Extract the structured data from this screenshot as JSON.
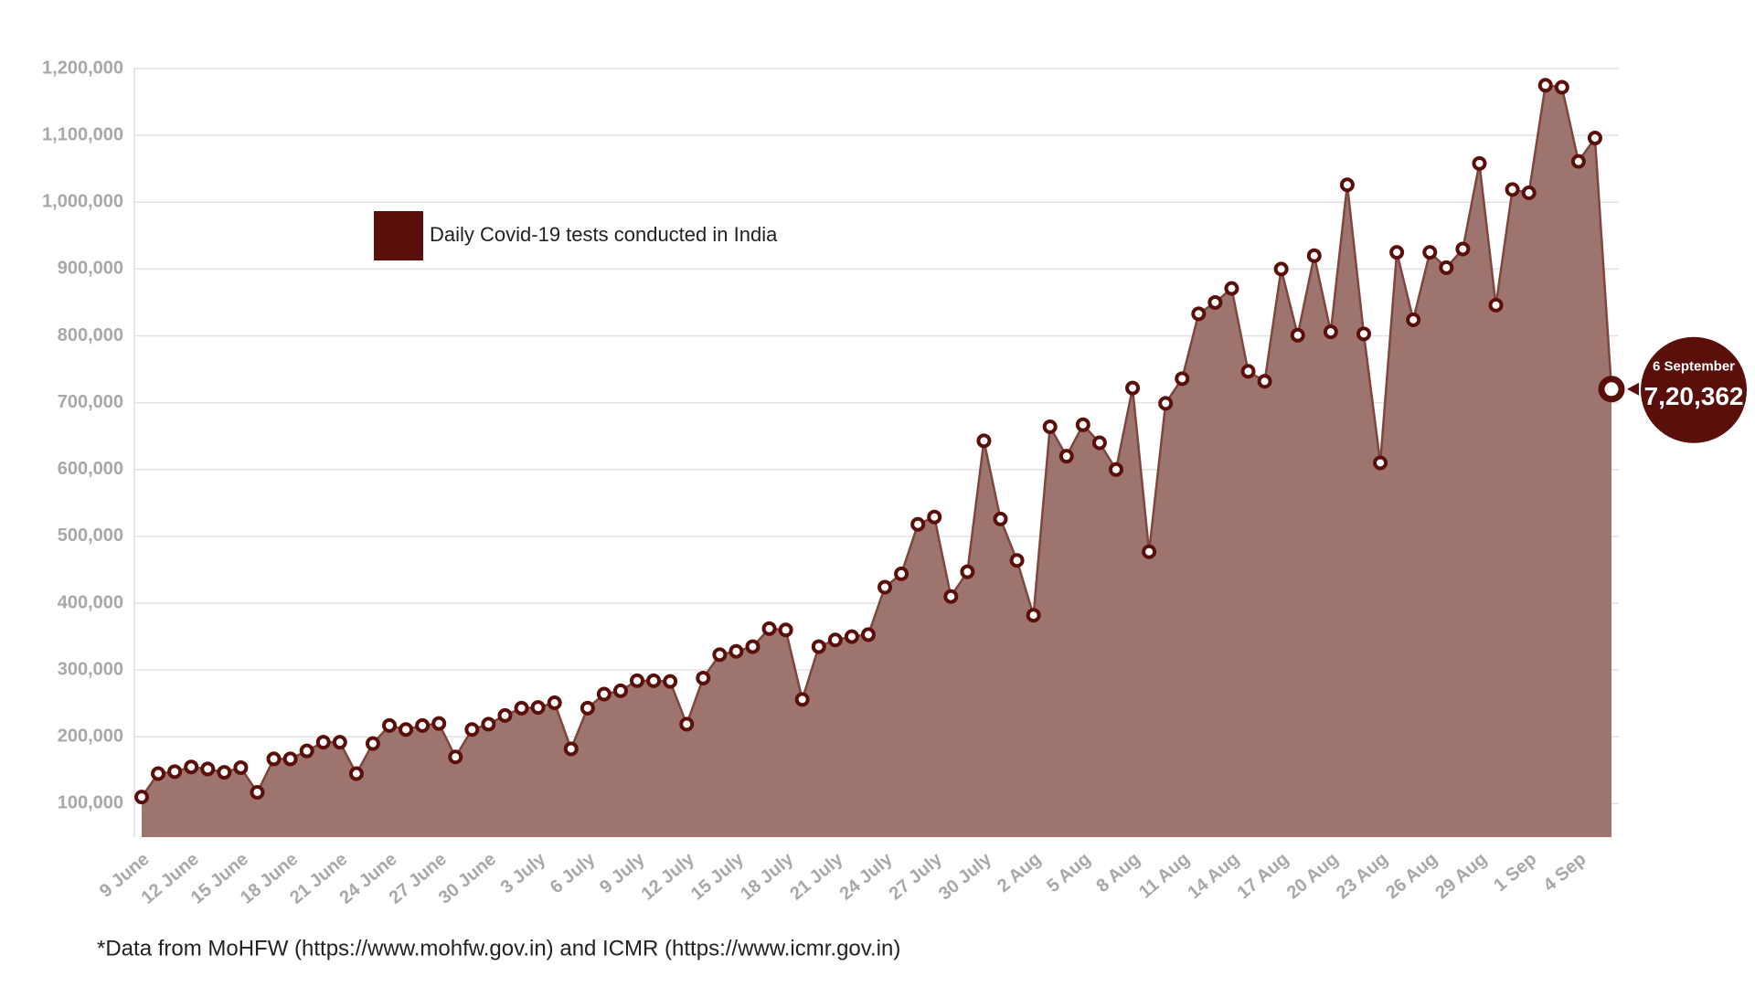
{
  "chart_data": {
    "type": "area",
    "legend_label": "Daily Covid-19 tests conducted in India",
    "footnote": "*Data from MoHFW (https://www.mohfw.gov.in) and ICMR (https://www.icmr.gov.in)",
    "categories": [
      "9 June",
      null,
      null,
      "12 June",
      null,
      null,
      "15 June",
      null,
      null,
      "18 June",
      null,
      null,
      "21 June",
      null,
      null,
      "24 June",
      null,
      null,
      "27 June",
      null,
      null,
      "30 June",
      null,
      null,
      "3 July",
      null,
      null,
      "6 July",
      null,
      null,
      "9 July",
      null,
      null,
      "12 July",
      null,
      null,
      "15 July",
      null,
      null,
      "18 July",
      null,
      null,
      "21 July",
      null,
      null,
      "24 July",
      null,
      null,
      "27 July",
      null,
      null,
      "30 July",
      null,
      null,
      "2 Aug",
      null,
      null,
      "5 Aug",
      null,
      null,
      "8 Aug",
      null,
      null,
      "11 Aug",
      null,
      null,
      "14 Aug",
      null,
      null,
      "17 Aug",
      null,
      null,
      "20 Aug",
      null,
      null,
      "23 Aug",
      null,
      null,
      "26 Aug",
      null,
      null,
      "29 Aug",
      null,
      null,
      "1 Sep",
      null,
      null,
      "4 Sep",
      null,
      "6 September"
    ],
    "values": [
      110000,
      145000,
      148000,
      155000,
      152000,
      147000,
      154000,
      117000,
      167000,
      167000,
      179000,
      192000,
      192000,
      145000,
      190000,
      217000,
      211000,
      217000,
      220000,
      170000,
      211000,
      219000,
      232000,
      243000,
      244000,
      251000,
      182000,
      243000,
      264000,
      269000,
      284000,
      284000,
      283000,
      219000,
      288000,
      323000,
      328000,
      335000,
      362000,
      360000,
      256000,
      335000,
      345000,
      350000,
      353000,
      424000,
      444000,
      518000,
      529000,
      410000,
      447000,
      643000,
      526000,
      464000,
      382000,
      664000,
      620000,
      667000,
      640000,
      600000,
      722000,
      477000,
      699000,
      736000,
      833000,
      850000,
      871000,
      747000,
      732000,
      900000,
      801000,
      920000,
      806000,
      1026000,
      803000,
      610000,
      925000,
      824000,
      925000,
      902000,
      930000,
      1058000,
      846000,
      1019000,
      1014000,
      1175000,
      1172000,
      1061000,
      1096000,
      720362
    ],
    "value_labels": [
      null,
      null,
      null,
      null,
      null,
      null,
      null,
      null,
      null,
      null,
      null,
      null,
      null,
      null,
      null,
      null,
      null,
      null,
      null,
      null,
      null,
      null,
      null,
      null,
      null,
      null,
      null,
      null,
      null,
      null,
      null,
      null,
      null,
      null,
      null,
      null,
      null,
      null,
      null,
      null,
      null,
      null,
      null,
      null,
      null,
      null,
      null,
      null,
      null,
      null,
      null,
      null,
      null,
      null,
      null,
      null,
      null,
      null,
      null,
      null,
      null,
      null,
      null,
      null,
      null,
      null,
      null,
      null,
      null,
      null,
      null,
      null,
      null,
      null,
      null,
      null,
      null,
      null,
      null,
      null,
      null,
      null,
      null,
      null,
      null,
      null,
      null,
      null,
      null,
      "7,20,362"
    ],
    "color": "#5a0f0a",
    "fill_color": "#9e756e",
    "line_color": "#7e4640",
    "ylim": [
      50000,
      1200000
    ],
    "yticks": [
      {
        "value": 100000,
        "label": "100,000"
      },
      {
        "value": 200000,
        "label": "200,000"
      },
      {
        "value": 300000,
        "label": "300,000"
      },
      {
        "value": 400000,
        "label": "400,000"
      },
      {
        "value": 500000,
        "label": "500,000"
      },
      {
        "value": 600000,
        "label": "600,000"
      },
      {
        "value": 700000,
        "label": "700,000"
      },
      {
        "value": 800000,
        "label": "800,000"
      },
      {
        "value": 900000,
        "label": "900,000"
      },
      {
        "value": 1000000,
        "label": "1,000,000"
      },
      {
        "value": 1100000,
        "label": "1,100,000"
      },
      {
        "value": 1200000,
        "label": "1,200,000"
      }
    ],
    "grid": true
  }
}
